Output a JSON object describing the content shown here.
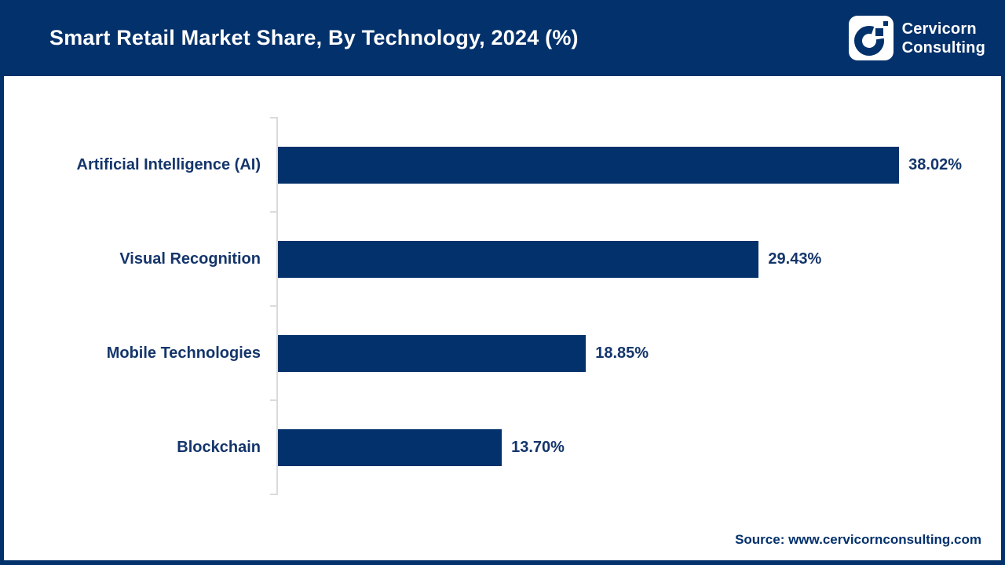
{
  "header": {
    "title": "Smart Retail Market Share, By Technology, 2024 (%)",
    "brand_line1": "Cervicorn",
    "brand_line2": "Consulting"
  },
  "colors": {
    "navy": "#03316B",
    "label_text": "#14356B",
    "axis_gray": "#DBDBDB",
    "background": "#FFFFFF"
  },
  "chart_data": {
    "type": "bar",
    "orientation": "horizontal",
    "title": "Smart Retail Market Share, By Technology, 2024 (%)",
    "categories": [
      "Artificial Intelligence (AI)",
      "Visual Recognition",
      "Mobile Technologies",
      "Blockchain"
    ],
    "values": [
      38.02,
      29.43,
      18.85,
      13.7
    ],
    "value_labels": [
      "38.02%",
      "29.43%",
      "18.85%",
      "13.70%"
    ],
    "unit": "%",
    "xlim": [
      0,
      44.5
    ],
    "grid": false,
    "legend": null,
    "bar_color": "#03316B"
  },
  "footer": {
    "source": "Source: www.cervicornconsulting.com"
  }
}
